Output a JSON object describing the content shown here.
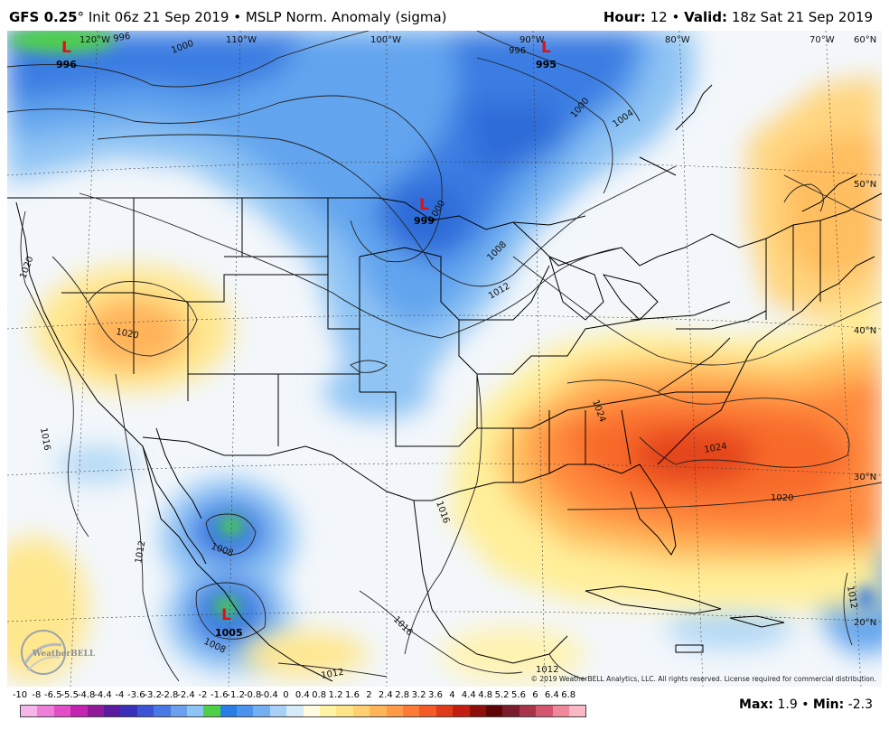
{
  "header": {
    "model": "GFS 0.25",
    "degree": "°",
    "init": "Init 06z 21 Sep 2019",
    "bullet": "•",
    "product": "MSLP Norm. Anomaly (sigma)",
    "hour_label": "Hour:",
    "hour_value": "12",
    "valid_label": "Valid:",
    "valid_value": "18z Sat 21 Sep 2019"
  },
  "map": {
    "longitudes": [
      "120°W",
      "110°W",
      "100°W",
      "90°W",
      "80°W",
      "70°W",
      "60°N"
    ],
    "latitudes": [
      "50°N",
      "40°N",
      "30°N",
      "20°N"
    ],
    "lows": [
      {
        "letter": "L",
        "value": "996"
      },
      {
        "letter": "L",
        "value": "995"
      },
      {
        "letter": "L",
        "value": "999"
      },
      {
        "letter": "L",
        "value": "1005"
      }
    ],
    "isobars": [
      "1000",
      "996",
      "996",
      "1000",
      "1004",
      "1000",
      "1008",
      "1012",
      "1020",
      "1020",
      "1016",
      "1012",
      "1008",
      "1008",
      "1016",
      "1016",
      "1012",
      "1024",
      "1024",
      "1020",
      "1012",
      "1012"
    ],
    "logo_text": "WeatherBELL",
    "copyright": "© 2019 WeatherBELL Analytics, LLC. All rights reserved. License required for commercial distribution."
  },
  "legend": {
    "labels": [
      "-10",
      "-8",
      "-6.5",
      "-5.5",
      "-4.8",
      "-4.4",
      "-4",
      "-3.6",
      "-3.2",
      "-2.8",
      "-2.4",
      "-2",
      "-1.6",
      "-1.2",
      "-0.8",
      "-0.4",
      "0",
      "0.4",
      "0.8",
      "1.2",
      "1.6",
      "2",
      "2.4",
      "2.8",
      "3.2",
      "3.6",
      "4",
      "4.4",
      "4.8",
      "5.2",
      "5.6",
      "6",
      "6.4",
      "6.8"
    ],
    "colors": [
      "#f7b4e8",
      "#ee7fd9",
      "#e24ec6",
      "#c324b0",
      "#8f1a9a",
      "#5a1c9c",
      "#3a2fb8",
      "#3c53d6",
      "#4a78e4",
      "#6aa0ee",
      "#8cc4f4",
      "#4dd046",
      "#2a7ee6",
      "#4a94ee",
      "#72b0f2",
      "#a8d0f6",
      "#d6eaf8",
      "#fffbe0",
      "#fff4a6",
      "#ffe488",
      "#ffd070",
      "#ffb45a",
      "#ff9a48",
      "#ff7a36",
      "#f45a26",
      "#e03a1a",
      "#c41e12",
      "#8e0e0a",
      "#5e0606",
      "#7a1c2c",
      "#a8344a",
      "#d4566e",
      "#ee889a",
      "#f8b8c4"
    ],
    "max_label": "Max:",
    "max_value": "1.9",
    "min_label": "Min:",
    "min_value": "-2.3"
  }
}
